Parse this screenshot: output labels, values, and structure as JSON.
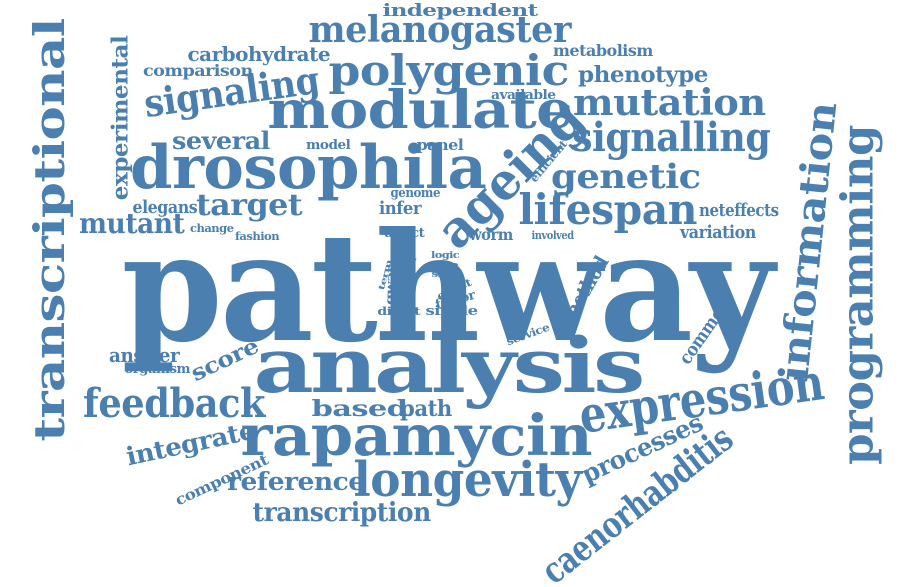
{
  "color": "#4a7fb0",
  "words": [
    "independent",
    "melanogaster",
    "carbohydrate",
    "metabolism",
    "experimental",
    "comparison",
    "polygenic",
    "phenotype",
    "signaling",
    "modulate",
    "mutation",
    "available",
    "transcriptional",
    "several",
    "model",
    "panel",
    "signalling",
    "drosophila",
    "ageing",
    "efficient",
    "genome",
    "genetic",
    "programming",
    "elegans",
    "target",
    "infer",
    "lifespan",
    "neteffects",
    "mutant",
    "change",
    "fashion",
    "affect",
    "worm",
    "involved",
    "variation",
    "information",
    "pathway",
    "logic",
    "core",
    "gwas",
    "data",
    "term",
    "snps",
    "effect",
    "factor",
    "method",
    "direct",
    "single",
    "answer",
    "organism",
    "score",
    "service",
    "common",
    "analysis",
    "feedback",
    "based",
    "path",
    "expression",
    "integrate",
    "rapamycin",
    "processes",
    "component",
    "reference",
    "longevity",
    "transcription",
    "caenorhabditis"
  ]
}
